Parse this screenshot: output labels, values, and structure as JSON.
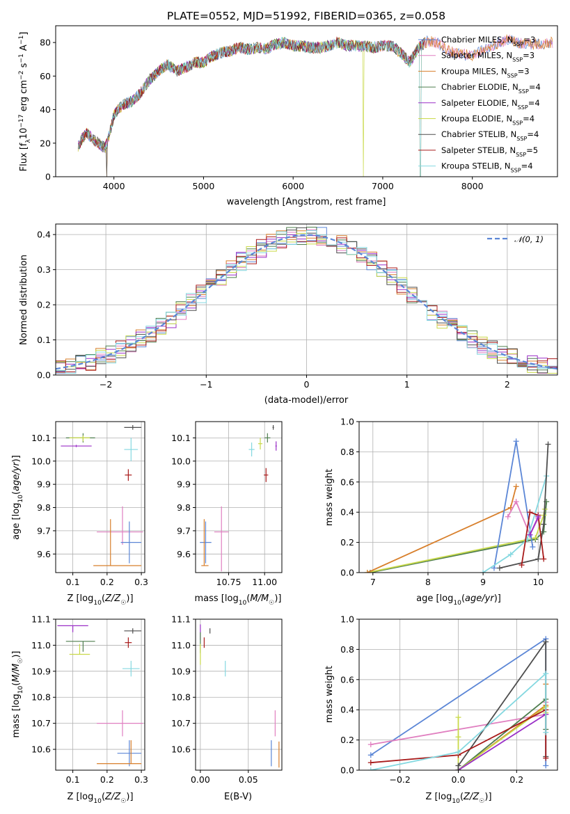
{
  "title": "PLATE=0552, MJD=51992, FIBERID=0365, z=0.058",
  "colors": {
    "chabrier_miles": "#5b86d6",
    "salpeter_miles": "#e07fc0",
    "kroupa_miles": "#d87f2b",
    "chabrier_elodie": "#4e7d4e",
    "salpeter_elodie": "#9a2fc7",
    "kroupa_elodie": "#c9d94a",
    "chabrier_stelib": "#4d4d4d",
    "salpeter_stelib": "#a81a1a",
    "kroupa_stelib": "#84d8e0"
  },
  "chart_data": [
    {
      "id": "spectrum",
      "type": "line",
      "xlabel": "wavelength [Angstrom, rest frame]",
      "ylabel": "Flux [f_λ10^-17 erg cm^-2 s^-1 A^-1]",
      "xlim": [
        3350,
        8950
      ],
      "ylim": [
        0,
        90
      ],
      "xticks": [
        "4000",
        "5000",
        "6000",
        "7000",
        "8000"
      ],
      "yticks": [
        "0",
        "20",
        "40",
        "60",
        "80"
      ],
      "legend_position": "right",
      "series": [
        {
          "key": "chabrier_miles",
          "label": "Chabrier MILES, N_SSP=3"
        },
        {
          "key": "salpeter_miles",
          "label": "Salpeter MILES, N_SSP=3"
        },
        {
          "key": "kroupa_miles",
          "label": "Kroupa MILES, N_SSP=3"
        },
        {
          "key": "chabrier_elodie",
          "label": "Chabrier ELODIE, N_SSP=4"
        },
        {
          "key": "salpeter_elodie",
          "label": "Salpeter ELODIE, N_SSP=4"
        },
        {
          "key": "kroupa_elodie",
          "label": "Kroupa ELODIE, N_SSP=4"
        },
        {
          "key": "chabrier_stelib",
          "label": "Chabrier STELIB, N_SSP=4"
        },
        {
          "key": "salpeter_stelib",
          "label": "Salpeter STELIB, N_SSP=5"
        },
        {
          "key": "kroupa_stelib",
          "label": "Kroupa STELIB, N_SSP=4"
        }
      ],
      "envelope": {
        "x": [
          3600,
          3650,
          3700,
          3800,
          3900,
          3950,
          4000,
          4100,
          4200,
          4300,
          4400,
          4500,
          4600,
          4700,
          4800,
          4900,
          5000,
          5100,
          5200,
          5300,
          5400,
          5500,
          5600,
          5700,
          5800,
          5900,
          6000,
          6100,
          6200,
          6300,
          6400,
          6500,
          6600,
          6700,
          6800,
          6900,
          7000,
          7100,
          7200,
          7300,
          7400,
          7500,
          7600,
          7700,
          7800,
          7900,
          8000,
          8100,
          8200,
          8300,
          8400,
          8500,
          8600,
          8700,
          8800,
          8900
        ],
        "y": [
          18,
          23,
          26,
          21,
          17,
          25,
          37,
          43,
          45,
          50,
          58,
          63,
          67,
          63,
          65,
          68,
          68,
          72,
          74,
          75,
          77,
          76,
          77,
          76,
          79,
          80,
          78,
          78,
          77,
          77,
          78,
          80,
          78,
          78,
          78,
          77,
          78,
          78,
          74,
          68,
          77,
          81,
          80,
          76,
          74,
          73,
          72,
          75,
          78,
          80,
          82,
          80,
          79,
          79,
          79,
          80
        ]
      },
      "dropouts": [
        {
          "key": "chabrier_stelib",
          "x": 3920
        },
        {
          "key": "kroupa_miles",
          "x": 3920
        },
        {
          "key": "kroupa_elodie",
          "x": 6785
        },
        {
          "key": "kroupa_miles",
          "x": 7420
        },
        {
          "key": "kroupa_stelib",
          "x": 7420
        }
      ]
    },
    {
      "id": "residuals",
      "type": "line",
      "xlabel": "(data-model)/error",
      "ylabel": "Normed distribution",
      "xlim": [
        -2.5,
        2.5
      ],
      "ylim": [
        0,
        0.43
      ],
      "xticks": [
        "−2",
        "−1",
        "0",
        "1",
        "2"
      ],
      "yticks": [
        "0.0",
        "0.1",
        "0.2",
        "0.3",
        "0.4"
      ],
      "legend": "𝒩(0, 1)",
      "legend_position": "top-right",
      "bin_width": 0.1,
      "gaussian": {
        "mean": 0,
        "sigma": 1
      }
    },
    {
      "id": "age_vs_Z",
      "type": "scatter",
      "xlabel": "Z [log10(Z/Z☉)]",
      "ylabel": "age [log10(age/yr)]",
      "xlim": [
        0.05,
        0.31
      ],
      "ylim": [
        9.52,
        10.17
      ],
      "xticks": [
        "0.1",
        "0.2",
        "0.3"
      ],
      "yticks": [
        "9.6",
        "9.7",
        "9.8",
        "9.9",
        "10.0",
        "10.1"
      ],
      "points": [
        {
          "key": "chabrier_stelib",
          "x": 0.275,
          "y": 10.145,
          "xe": [
            0.025,
            0.025
          ],
          "ye": [
            0.01,
            0.01
          ]
        },
        {
          "key": "chabrier_elodie",
          "x": 0.13,
          "y": 10.1,
          "xe": [
            0.05,
            0.035
          ],
          "ye": [
            0.02,
            0.02
          ]
        },
        {
          "key": "kroupa_elodie",
          "x": 0.13,
          "y": 10.1,
          "xe": [
            0.04,
            0.02
          ],
          "ye": [
            0.015,
            0.01
          ]
        },
        {
          "key": "salpeter_elodie",
          "x": 0.11,
          "y": 10.065,
          "xe": [
            0.045,
            0.045
          ],
          "ye": [
            0.005,
            0.005
          ]
        },
        {
          "key": "kroupa_stelib",
          "x": 0.27,
          "y": 10.05,
          "xe": [
            0.02,
            0.02
          ],
          "ye": [
            0.05,
            0.05
          ]
        },
        {
          "key": "salpeter_stelib",
          "x": 0.262,
          "y": 9.94,
          "xe": [
            0.01,
            0.01
          ],
          "ye": [
            0.025,
            0.025
          ]
        },
        {
          "key": "salpeter_miles",
          "x": 0.245,
          "y": 9.695,
          "xe": [
            0.075,
            0.06
          ],
          "ye": [
            0.055,
            0.11
          ]
        },
        {
          "key": "chabrier_miles",
          "x": 0.265,
          "y": 9.65,
          "xe": [
            0.025,
            0.035
          ],
          "ye": [
            0.09,
            0.09
          ]
        },
        {
          "key": "kroupa_miles",
          "x": 0.21,
          "y": 9.55,
          "xe": [
            0.05,
            0.09
          ],
          "ye": [
            0.0,
            0.2
          ]
        }
      ]
    },
    {
      "id": "age_vs_mass",
      "type": "scatter",
      "xlabel": "mass [log10(M/M☉)]",
      "ylabel": "",
      "xlim": [
        10.52,
        11.12
      ],
      "ylim": [
        9.52,
        10.17
      ],
      "xticks": [
        "10.75",
        "11.00"
      ],
      "yticks": [
        "9.6",
        "9.7",
        "9.8",
        "9.9",
        "10.0",
        "10.1"
      ],
      "points": [
        {
          "key": "chabrier_stelib",
          "x": 11.06,
          "y": 10.145,
          "xe": [
            0.005,
            0.005
          ],
          "ye": [
            0.01,
            0.01
          ]
        },
        {
          "key": "chabrier_elodie",
          "x": 11.02,
          "y": 10.1,
          "xe": [
            0.02,
            0.02
          ],
          "ye": [
            0.02,
            0.02
          ]
        },
        {
          "key": "kroupa_elodie",
          "x": 10.97,
          "y": 10.075,
          "xe": [
            0.015,
            0.015
          ],
          "ye": [
            0.025,
            0.025
          ]
        },
        {
          "key": "salpeter_elodie",
          "x": 11.08,
          "y": 10.065,
          "xe": [
            0.005,
            0.005
          ],
          "ye": [
            0.02,
            0.02
          ]
        },
        {
          "key": "kroupa_stelib",
          "x": 10.91,
          "y": 10.05,
          "xe": [
            0.02,
            0.02
          ],
          "ye": [
            0.03,
            0.03
          ]
        },
        {
          "key": "salpeter_stelib",
          "x": 11.01,
          "y": 9.94,
          "xe": [
            0.015,
            0.015
          ],
          "ye": [
            0.03,
            0.03
          ]
        },
        {
          "key": "salpeter_miles",
          "x": 10.7,
          "y": 9.695,
          "xe": [
            0.05,
            0.05
          ],
          "ye": [
            0.17,
            0.11
          ]
        },
        {
          "key": "chabrier_miles",
          "x": 10.59,
          "y": 9.65,
          "xe": [
            0.04,
            0.04
          ],
          "ye": [
            0.09,
            0.09
          ]
        },
        {
          "key": "kroupa_miles",
          "x": 10.58,
          "y": 9.55,
          "xe": [
            0.02,
            0.03
          ],
          "ye": [
            0.0,
            0.2
          ]
        }
      ]
    },
    {
      "id": "mass_weight_vs_age",
      "type": "line",
      "xlabel": "age [log10(age/yr)]",
      "ylabel": "mass weight",
      "xlim": [
        6.75,
        10.35
      ],
      "ylim": [
        0,
        1.0
      ],
      "xticks": [
        "7",
        "8",
        "9",
        "10"
      ],
      "yticks": [
        "0.0",
        "0.2",
        "0.4",
        "0.6",
        "0.8",
        "1.0"
      ],
      "series": [
        {
          "key": "chabrier_elodie",
          "x": [
            6.95,
            9.95,
            10.1,
            10.15
          ],
          "y": [
            0.0,
            0.22,
            0.27,
            0.47
          ]
        },
        {
          "key": "kroupa_elodie",
          "x": [
            6.9,
            9.95,
            10.1,
            10.12
          ],
          "y": [
            0.0,
            0.23,
            0.38,
            0.42
          ]
        },
        {
          "key": "kroupa_miles",
          "x": [
            6.9,
            9.5,
            9.6
          ],
          "y": [
            0.0,
            0.43,
            0.57
          ]
        },
        {
          "key": "salpeter_miles",
          "x": [
            9.45,
            9.6,
            9.85,
            10.0
          ],
          "y": [
            0.37,
            0.47,
            0.25,
            0.36
          ]
        },
        {
          "key": "chabrier_miles",
          "x": [
            9.2,
            9.6,
            9.9
          ],
          "y": [
            0.03,
            0.87,
            0.17
          ]
        },
        {
          "key": "kroupa_stelib",
          "x": [
            9.0,
            9.5,
            9.8,
            10.15
          ],
          "y": [
            0.0,
            0.12,
            0.22,
            0.64
          ]
        },
        {
          "key": "chabrier_stelib",
          "x": [
            9.3,
            10.0,
            10.1,
            10.18
          ],
          "y": [
            0.03,
            0.09,
            0.32,
            0.85
          ]
        },
        {
          "key": "salpeter_stelib",
          "x": [
            9.7,
            9.85,
            10.0,
            10.1
          ],
          "y": [
            0.05,
            0.4,
            0.38,
            0.09
          ]
        },
        {
          "key": "salpeter_elodie",
          "x": [
            9.85,
            10.0
          ],
          "y": [
            0.25,
            0.37
          ]
        }
      ]
    },
    {
      "id": "mass_vs_Z",
      "type": "scatter",
      "xlabel": "Z [log10(Z/Z☉)]",
      "ylabel": "mass [log10(M/M☉)]",
      "xlim": [
        0.05,
        0.31
      ],
      "ylim": [
        10.52,
        11.1
      ],
      "xticks": [
        "0.1",
        "0.2",
        "0.3"
      ],
      "yticks": [
        "10.6",
        "10.7",
        "10.8",
        "10.9",
        "11.0",
        "11.1"
      ],
      "points": [
        {
          "key": "salpeter_elodie",
          "x": 0.1,
          "y": 11.075,
          "xe": [
            0.045,
            0.045
          ],
          "ye": [
            0.025,
            0.0
          ]
        },
        {
          "key": "chabrier_stelib",
          "x": 0.275,
          "y": 11.055,
          "xe": [
            0.025,
            0.025
          ],
          "ye": [
            0.01,
            0.01
          ]
        },
        {
          "key": "chabrier_elodie",
          "x": 0.13,
          "y": 11.015,
          "xe": [
            0.05,
            0.035
          ],
          "ye": [
            0.04,
            0.0
          ]
        },
        {
          "key": "salpeter_stelib",
          "x": 0.262,
          "y": 11.01,
          "xe": [
            0.01,
            0.01
          ],
          "ye": [
            0.02,
            0.02
          ]
        },
        {
          "key": "kroupa_elodie",
          "x": 0.12,
          "y": 10.965,
          "xe": [
            0.03,
            0.03
          ],
          "ye": [
            0.0,
            0.04
          ]
        },
        {
          "key": "kroupa_stelib",
          "x": 0.27,
          "y": 10.91,
          "xe": [
            0.025,
            0.025
          ],
          "ye": [
            0.03,
            0.03
          ]
        },
        {
          "key": "salpeter_miles",
          "x": 0.245,
          "y": 10.7,
          "xe": [
            0.075,
            0.06
          ],
          "ye": [
            0.05,
            0.05
          ]
        },
        {
          "key": "chabrier_miles",
          "x": 0.265,
          "y": 10.585,
          "xe": [
            0.035,
            0.035
          ],
          "ye": [
            0.05,
            0.05
          ]
        },
        {
          "key": "kroupa_miles",
          "x": 0.27,
          "y": 10.545,
          "xe": [
            0.1,
            0.03
          ],
          "ye": [
            0.0,
            0.09
          ]
        }
      ]
    },
    {
      "id": "mass_vs_ebv",
      "type": "scatter",
      "xlabel": "E(B-V)",
      "ylabel": "",
      "xlim": [
        -0.005,
        0.085
      ],
      "ylim": [
        10.52,
        11.1
      ],
      "xticks": [
        "0.00",
        "0.05"
      ],
      "yticks": [
        "10.6",
        "10.7",
        "10.8",
        "10.9",
        "11.0",
        "11.1"
      ],
      "points": [
        {
          "key": "salpeter_elodie",
          "x": 0.0,
          "y": 11.06,
          "ye": [
            0.04,
            0.02
          ]
        },
        {
          "key": "chabrier_stelib",
          "x": 0.01,
          "y": 11.055,
          "ye": [
            0.01,
            0.01
          ]
        },
        {
          "key": "chabrier_elodie",
          "x": 0.0,
          "y": 11.01,
          "ye": [
            0.04,
            0.04
          ]
        },
        {
          "key": "salpeter_stelib",
          "x": 0.004,
          "y": 11.01,
          "ye": [
            0.02,
            0.02
          ]
        },
        {
          "key": "kroupa_elodie",
          "x": 0.0,
          "y": 10.965,
          "ye": [
            0.04,
            0.04
          ]
        },
        {
          "key": "kroupa_stelib",
          "x": 0.026,
          "y": 10.91,
          "ye": [
            0.03,
            0.03
          ]
        },
        {
          "key": "salpeter_miles",
          "x": 0.078,
          "y": 10.7,
          "ye": [
            0.05,
            0.05
          ]
        },
        {
          "key": "chabrier_miles",
          "x": 0.074,
          "y": 10.585,
          "ye": [
            0.05,
            0.05
          ]
        },
        {
          "key": "kroupa_miles",
          "x": 0.082,
          "y": 10.58,
          "ye": [
            0.05,
            0.05
          ]
        }
      ]
    },
    {
      "id": "mass_weight_vs_Z",
      "type": "line",
      "xlabel": "Z [log10(Z/Z☉)]",
      "ylabel": "mass weight",
      "xlim": [
        -0.34,
        0.34
      ],
      "ylim": [
        0,
        1.0
      ],
      "xticks": [
        "−0.2",
        "0.0",
        "0.2"
      ],
      "yticks": [
        "0.0",
        "0.2",
        "0.4",
        "0.6",
        "0.8",
        "1.0"
      ],
      "series": [
        {
          "key": "chabrier_miles",
          "x": [
            -0.3,
            0.3,
            0.3
          ],
          "y": [
            0.1,
            0.87,
            0.03
          ]
        },
        {
          "key": "salpeter_miles",
          "x": [
            -0.3,
            0.3,
            0.3
          ],
          "y": [
            0.17,
            0.37,
            0.45
          ]
        },
        {
          "key": "kroupa_miles",
          "x": [
            0.0,
            0.3,
            0.3
          ],
          "y": [
            0.0,
            0.43,
            0.57
          ]
        },
        {
          "key": "chabrier_elodie",
          "x": [
            0.0,
            0.3,
            0.3
          ],
          "y": [
            0.0,
            0.47,
            0.27
          ]
        },
        {
          "key": "kroupa_elodie",
          "x": [
            0.0,
            0.0,
            0.0,
            0.3,
            0.3
          ],
          "y": [
            0.35,
            0.22,
            0.0,
            0.42,
            0.38
          ]
        },
        {
          "key": "salpeter_elodie",
          "x": [
            0.0,
            0.3
          ],
          "y": [
            0.0,
            0.37
          ]
        },
        {
          "key": "chabrier_stelib",
          "x": [
            0.0,
            0.0,
            0.3,
            0.3
          ],
          "y": [
            0.0,
            0.03,
            0.85,
            0.09
          ]
        },
        {
          "key": "salpeter_stelib",
          "x": [
            -0.3,
            0.0,
            0.3,
            0.3
          ],
          "y": [
            0.05,
            0.1,
            0.4,
            0.08
          ]
        },
        {
          "key": "kroupa_stelib",
          "x": [
            -0.3,
            0.0,
            0.3,
            0.3
          ],
          "y": [
            0.0,
            0.12,
            0.64,
            0.25
          ]
        }
      ]
    }
  ]
}
